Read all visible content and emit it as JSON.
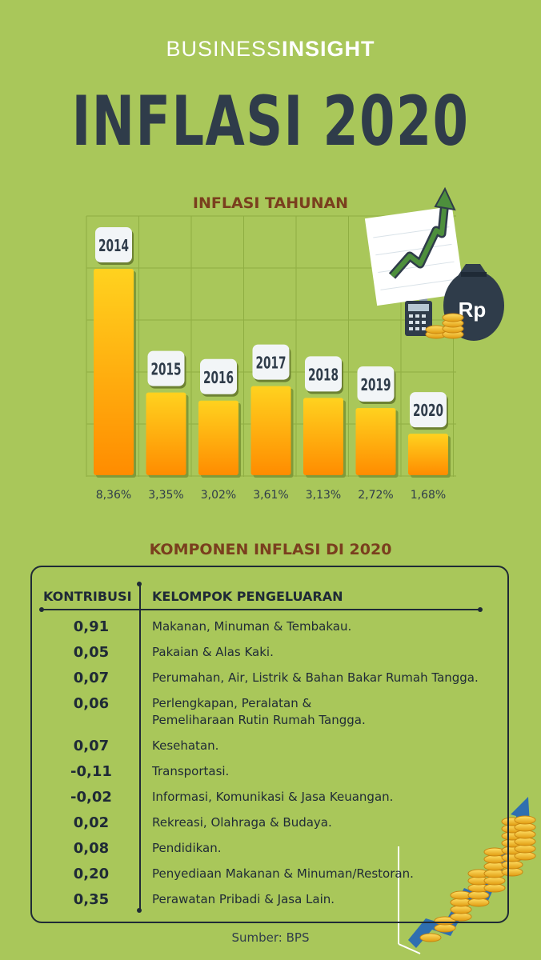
{
  "brand": {
    "part1": "BUSINESS",
    "part2": "INSIGHT"
  },
  "title": "INFLASI 2020",
  "chart_data": {
    "type": "bar",
    "title": "INFLASI TAHUNAN",
    "categories": [
      "2014",
      "2015",
      "2016",
      "2017",
      "2018",
      "2019",
      "2020"
    ],
    "values": [
      8.36,
      3.35,
      3.02,
      3.61,
      3.13,
      2.72,
      1.68
    ],
    "value_labels": [
      "8,36%",
      "3,35%",
      "3,02%",
      "3,61%",
      "3,13%",
      "2,72%",
      "1,68%"
    ],
    "ylim": [
      0,
      9
    ],
    "grid": true,
    "colors": {
      "bar_top": "#ffd21f",
      "bar_bottom": "#ff8c00",
      "grid": "#8fae42",
      "background": "#a9c75a"
    }
  },
  "table": {
    "title": "KOMPONEN INFLASI DI 2020",
    "headers": {
      "col1": "KONTRIBUSI",
      "col2": "KELOMPOK PENGELUARAN"
    },
    "rows": [
      {
        "value": "0,91",
        "label": "Makanan, Minuman & Tembakau."
      },
      {
        "value": "0,05",
        "label": "Pakaian & Alas Kaki."
      },
      {
        "value": "0,07",
        "label": "Perumahan, Air, Listrik & Bahan Bakar Rumah Tangga."
      },
      {
        "value": "0,06",
        "label": "Perlengkapan, Peralatan &",
        "label2": "Pemeliharaan Rutin Rumah Tangga."
      },
      {
        "value": "0,07",
        "label": "Kesehatan."
      },
      {
        "value": "-0,11",
        "label": "Transportasi."
      },
      {
        "value": "-0,02",
        "label": "Informasi, Komunikasi & Jasa Keuangan."
      },
      {
        "value": "0,02",
        "label": "Rekreasi, Olahraga & Budaya."
      },
      {
        "value": "0,08",
        "label": "Pendidikan."
      },
      {
        "value": "0,20",
        "label": "Penyediaan Makanan & Minuman/Restoran."
      },
      {
        "value": "0,35",
        "label": "Perawatan Pribadi & Jasa Lain."
      }
    ]
  },
  "illustration": {
    "money_bag_label": "Rp",
    "icons": [
      "chart-board-icon",
      "money-bag-icon",
      "calculator-icon",
      "coins-icon",
      "growth-coins-icon"
    ]
  },
  "source": "Sumber: BPS"
}
